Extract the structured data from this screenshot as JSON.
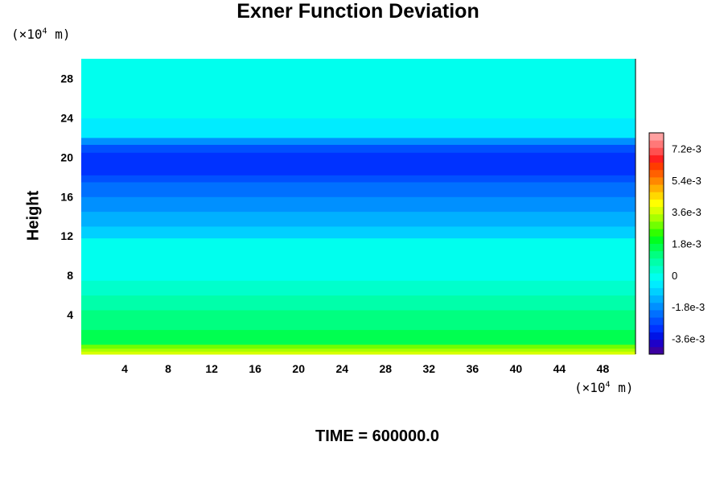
{
  "chart_data": {
    "type": "heatmap",
    "title": "Exner Function Deviation",
    "ylabel": "Height",
    "xlabel": "",
    "x_unit_prefix": "(×10",
    "x_unit_exp": "4",
    "x_unit_suffix": " m)",
    "y_unit_prefix": "(×10",
    "y_unit_exp": "4",
    "y_unit_suffix": " m)",
    "xlim": [
      0,
      51
    ],
    "ylim": [
      0,
      30
    ],
    "xticks": [
      4,
      8,
      12,
      16,
      20,
      24,
      28,
      32,
      36,
      40,
      44,
      48
    ],
    "xtick_labels": [
      "4",
      "8",
      "12",
      "16",
      "20",
      "24",
      "28",
      "32",
      "36",
      "40",
      "44",
      "48"
    ],
    "yticks": [
      4,
      8,
      12,
      16,
      20,
      24,
      28
    ],
    "ytick_labels": [
      "4",
      "8",
      "12",
      "16",
      "20",
      "24",
      "28"
    ],
    "colorbar": {
      "min": -0.0045,
      "max": 0.0081,
      "ticks": [
        -0.0036,
        -0.0018,
        0,
        0.0018,
        0.0036,
        0.0054,
        0.0072
      ],
      "tick_labels": [
        "-3.6e-3",
        "-1.8e-3",
        "0",
        "1.8e-3",
        "3.6e-3",
        "5.4e-3",
        "7.2e-3"
      ],
      "colors": [
        "#3b00a0",
        "#1e00c8",
        "#0014e6",
        "#0032ff",
        "#0050ff",
        "#0070ff",
        "#0090ff",
        "#00b0ff",
        "#00d0ff",
        "#00ecff",
        "#00ffee",
        "#00ffcc",
        "#00ffaa",
        "#00ff80",
        "#00ff50",
        "#00ff20",
        "#30ff00",
        "#70ff00",
        "#a8ff00",
        "#d8ff00",
        "#ffff00",
        "#ffd800",
        "#ffb000",
        "#ff8800",
        "#ff6000",
        "#ff3c00",
        "#ff2020",
        "#ff5050",
        "#ff7878",
        "#ffa0a0"
      ]
    },
    "bands": [
      {
        "y0": 0,
        "y1": 0.3,
        "value": 0.0036
      },
      {
        "y0": 0.3,
        "y1": 0.6,
        "value": 0.0033
      },
      {
        "y0": 0.6,
        "y1": 1.0,
        "value": 0.0027
      },
      {
        "y0": 1.0,
        "y1": 2.5,
        "value": 0.0016
      },
      {
        "y0": 2.5,
        "y1": 4.5,
        "value": 0.0011
      },
      {
        "y0": 4.5,
        "y1": 6.0,
        "value": 0.0007
      },
      {
        "y0": 6.0,
        "y1": 7.5,
        "value": 0.0004
      },
      {
        "y0": 7.5,
        "y1": 9.0,
        "value": 0.0001
      },
      {
        "y0": 9.0,
        "y1": 11.8,
        "value": -0.0003
      },
      {
        "y0": 11.8,
        "y1": 13.0,
        "value": -0.0008
      },
      {
        "y0": 13.0,
        "y1": 14.5,
        "value": -0.0013
      },
      {
        "y0": 14.5,
        "y1": 16.0,
        "value": -0.0019
      },
      {
        "y0": 16.0,
        "y1": 17.5,
        "value": -0.0023
      },
      {
        "y0": 17.5,
        "y1": 18.2,
        "value": -0.0027
      },
      {
        "y0": 18.2,
        "y1": 20.5,
        "value": -0.003
      },
      {
        "y0": 20.5,
        "y1": 21.3,
        "value": -0.0025
      },
      {
        "y0": 21.3,
        "y1": 22.0,
        "value": -0.0016
      },
      {
        "y0": 22.0,
        "y1": 24.0,
        "value": -0.0004
      },
      {
        "y0": 24.0,
        "y1": 30.0,
        "value": 0.0
      }
    ],
    "time_label": "TIME = 600000.0"
  }
}
